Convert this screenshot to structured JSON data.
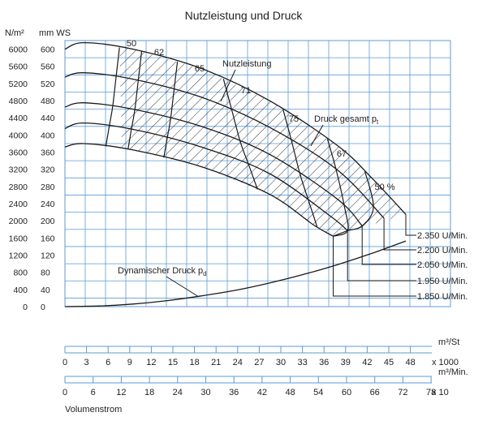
{
  "chart_data": {
    "type": "line",
    "title": "Nutzleistung und Druck",
    "y_unit_pressure": "N/m²",
    "y_unit_head": "mm WS",
    "pressure_ticks": [
      "6000",
      "5600",
      "5200",
      "4800",
      "4400",
      "4000",
      "3600",
      "3200",
      "2800",
      "2400",
      "2000",
      "1600",
      "1200",
      "800",
      "400",
      "0"
    ],
    "head_ticks": [
      "600",
      "560",
      "520",
      "480",
      "440",
      "400",
      "360",
      "320",
      "280",
      "240",
      "200",
      "160",
      "120",
      "80",
      "40",
      "0"
    ],
    "ylim": [
      0,
      620
    ],
    "xlim": [
      0,
      1000
    ],
    "x_axis_1": {
      "unit": "m³/St",
      "multiplier": "x 1000",
      "ticks": [
        "0",
        "3",
        "6",
        "9",
        "12",
        "15",
        "18",
        "21",
        "24",
        "27",
        "30",
        "33",
        "36",
        "39",
        "42",
        "45",
        "48"
      ]
    },
    "x_axis_2": {
      "unit": "m³/Min.",
      "multiplier": "x 10",
      "ticks": [
        "0",
        "6",
        "12",
        "18",
        "24",
        "30",
        "36",
        "42",
        "48",
        "54",
        "60",
        "66",
        "72",
        "78"
      ]
    },
    "xlabel": "Volumenstrom",
    "speed_curves": [
      {
        "name": "2.350 U/Min.",
        "head_x": [
          0,
          55,
          200,
          400,
          600,
          800,
          900,
          1000
        ],
        "head_y": [
          600,
          615,
          600,
          555,
          480,
          375,
          300,
          215
        ]
      },
      {
        "name": "2.200 U/Min.",
        "head_x": [
          0,
          55,
          200,
          400,
          600,
          800,
          936
        ],
        "head_y": [
          535,
          545,
          530,
          488,
          418,
          318,
          206
        ]
      },
      {
        "name": "2.050 U/Min.",
        "head_x": [
          0,
          55,
          200,
          400,
          600,
          800,
          872
        ],
        "head_y": [
          465,
          475,
          460,
          420,
          355,
          250,
          188
        ]
      },
      {
        "name": "1.950 U/Min.",
        "head_x": [
          0,
          55,
          200,
          400,
          600,
          780,
          829
        ],
        "head_y": [
          415,
          428,
          413,
          372,
          310,
          210,
          177
        ]
      },
      {
        "name": "1.850 U/Min.",
        "head_x": [
          0,
          55,
          200,
          400,
          600,
          730,
          787
        ],
        "head_y": [
          372,
          380,
          365,
          326,
          262,
          190,
          164
        ]
      }
    ],
    "dynamic_pressure": {
      "name": "Dynamischer Druck pd",
      "x": [
        0,
        100,
        200,
        300,
        400,
        500,
        600,
        700,
        800,
        900,
        1000
      ],
      "y": [
        0,
        1.5,
        6,
        14,
        25,
        38,
        55,
        75,
        98,
        124,
        153
      ]
    },
    "efficiency_labels": [
      "50",
      "62",
      "65",
      "71",
      "75",
      "67",
      "50 %"
    ],
    "annotations": {
      "useful_power": "Nutzleistung",
      "total_pressure": "Druck gesamt p",
      "total_pressure_sub": "t",
      "dynamic_pressure": "Dynamischer Druck p",
      "dynamic_pressure_sub": "d"
    },
    "grid": true,
    "colors": {
      "grid": "#5b9bd5",
      "curve": "#1a1a1a"
    }
  }
}
